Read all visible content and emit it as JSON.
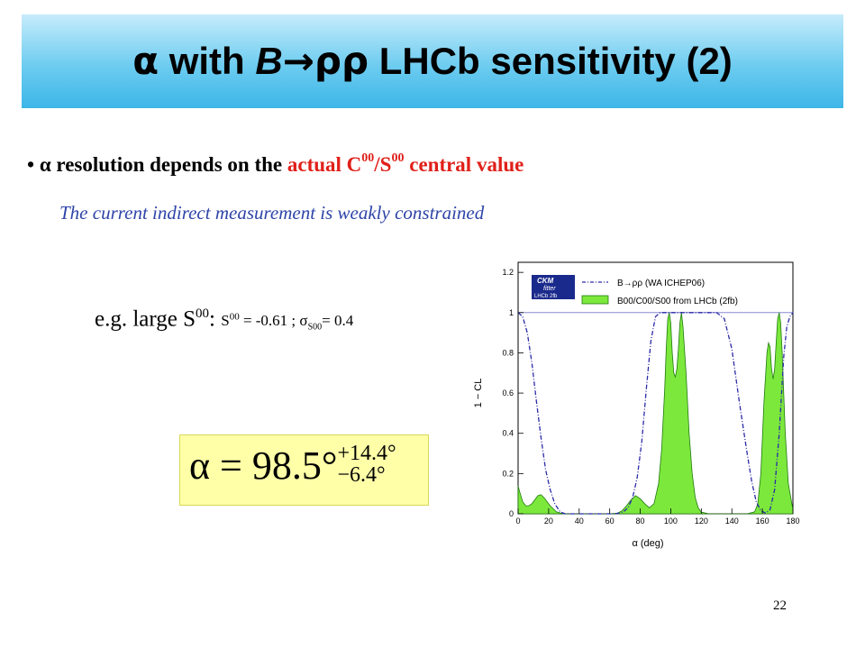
{
  "title": {
    "prefix": "α",
    "with": " with ",
    "B": "B",
    "arrow": "→ρρ",
    "rest": " LHCb sensitivity (2)"
  },
  "bullet": {
    "dot": "•",
    "alpha": "α",
    "text_before": " resolution depends on the ",
    "red1": "actual C",
    "sup1": "00",
    "red2": "/S",
    "sup2": "00",
    "after": " central value"
  },
  "subnote": "The current indirect measurement is weakly constrained",
  "example": {
    "label": "e.g. large S",
    "sup": "00",
    "colon": ":",
    "eq_s": "S",
    "eq_sup": "00",
    "eq_val": " = -0.61 ; ",
    "sigma": "σ",
    "sigma_sub": "S00",
    "sigma_val": "= 0.4"
  },
  "formula": {
    "lhs": "α = 98.5°",
    "upper": "+14.4°",
    "lower": "−6.4°"
  },
  "page_number": "22",
  "chart_data": {
    "type": "area",
    "xlabel": "α   (deg)",
    "ylabel": "1 − CL",
    "xlim": [
      0,
      180
    ],
    "ylim": [
      0,
      1.25
    ],
    "xticks": [
      0,
      20,
      40,
      60,
      80,
      100,
      120,
      140,
      160,
      180
    ],
    "yticks": [
      0,
      0.2,
      0.4,
      0.6,
      0.8,
      1,
      1.2
    ],
    "logo": {
      "line1": "CKM",
      "line2": "fitter",
      "line3": "LHCb 2fb"
    },
    "legend": [
      {
        "name": "B→ρρ (WA ICHEP06)",
        "style": "dash-dot"
      },
      {
        "name": "B00/C00/S00 from LHCb (2fb)",
        "style": "filled"
      }
    ],
    "colors": {
      "filled": "#7ce83c",
      "filled_edge": "#207a10",
      "dashdot": "#2a2aa8",
      "ref_line": "#8888d0"
    },
    "series": [
      {
        "name": "B→ρρ (WA ICHEP06)",
        "x": [
          0,
          3,
          6,
          9,
          12,
          15,
          18,
          21,
          24,
          27,
          29,
          31,
          33,
          35,
          40,
          45,
          50,
          55,
          60,
          63,
          66,
          69,
          72,
          75,
          78,
          81,
          84,
          87,
          90,
          93,
          96,
          100,
          105,
          110,
          115,
          120,
          125,
          130,
          135,
          140,
          145,
          150,
          153,
          156,
          159,
          162,
          165,
          168,
          171,
          174,
          176,
          178,
          180
        ],
        "y": [
          1.0,
          0.98,
          0.9,
          0.75,
          0.56,
          0.38,
          0.22,
          0.12,
          0.05,
          0.015,
          0.005,
          0,
          0,
          0,
          0,
          0,
          0,
          0,
          0,
          0,
          0.003,
          0.01,
          0.03,
          0.08,
          0.18,
          0.36,
          0.62,
          0.86,
          0.98,
          1.0,
          1.0,
          1.0,
          1.0,
          1.0,
          1.0,
          1.0,
          1.0,
          1.0,
          0.97,
          0.82,
          0.55,
          0.3,
          0.16,
          0.06,
          0.015,
          0.004,
          0.02,
          0.12,
          0.4,
          0.78,
          0.93,
          0.98,
          1.0
        ]
      },
      {
        "name": "B00/C00/S00 from LHCb (2fb)",
        "x": [
          0,
          1,
          3,
          5,
          7,
          9,
          11,
          13,
          15,
          17,
          19,
          21,
          23,
          25,
          28,
          30,
          60,
          65,
          68,
          71,
          74,
          77,
          80,
          83,
          86,
          89,
          92,
          94,
          96,
          97,
          98,
          99,
          100,
          101,
          102,
          103,
          104,
          105,
          106,
          107,
          108,
          110,
          112,
          114,
          116,
          118,
          120,
          125,
          150,
          155,
          157,
          159,
          161,
          163,
          164,
          165,
          166,
          167,
          168,
          169,
          170,
          171,
          172,
          173,
          174,
          175,
          177,
          180
        ],
        "y": [
          0.14,
          0.11,
          0.06,
          0.04,
          0.04,
          0.05,
          0.07,
          0.09,
          0.095,
          0.08,
          0.06,
          0.04,
          0.025,
          0.01,
          0.003,
          0,
          0,
          0.003,
          0.015,
          0.04,
          0.07,
          0.09,
          0.075,
          0.05,
          0.03,
          0.05,
          0.15,
          0.32,
          0.62,
          0.82,
          0.97,
          1.0,
          0.95,
          0.8,
          0.7,
          0.68,
          0.72,
          0.82,
          0.95,
          1.0,
          0.93,
          0.7,
          0.4,
          0.2,
          0.08,
          0.03,
          0.008,
          0,
          0,
          0.01,
          0.05,
          0.2,
          0.55,
          0.8,
          0.85,
          0.83,
          0.72,
          0.67,
          0.72,
          0.85,
          0.97,
          1.0,
          0.95,
          0.8,
          0.6,
          0.4,
          0.15,
          0.02
        ]
      }
    ]
  }
}
